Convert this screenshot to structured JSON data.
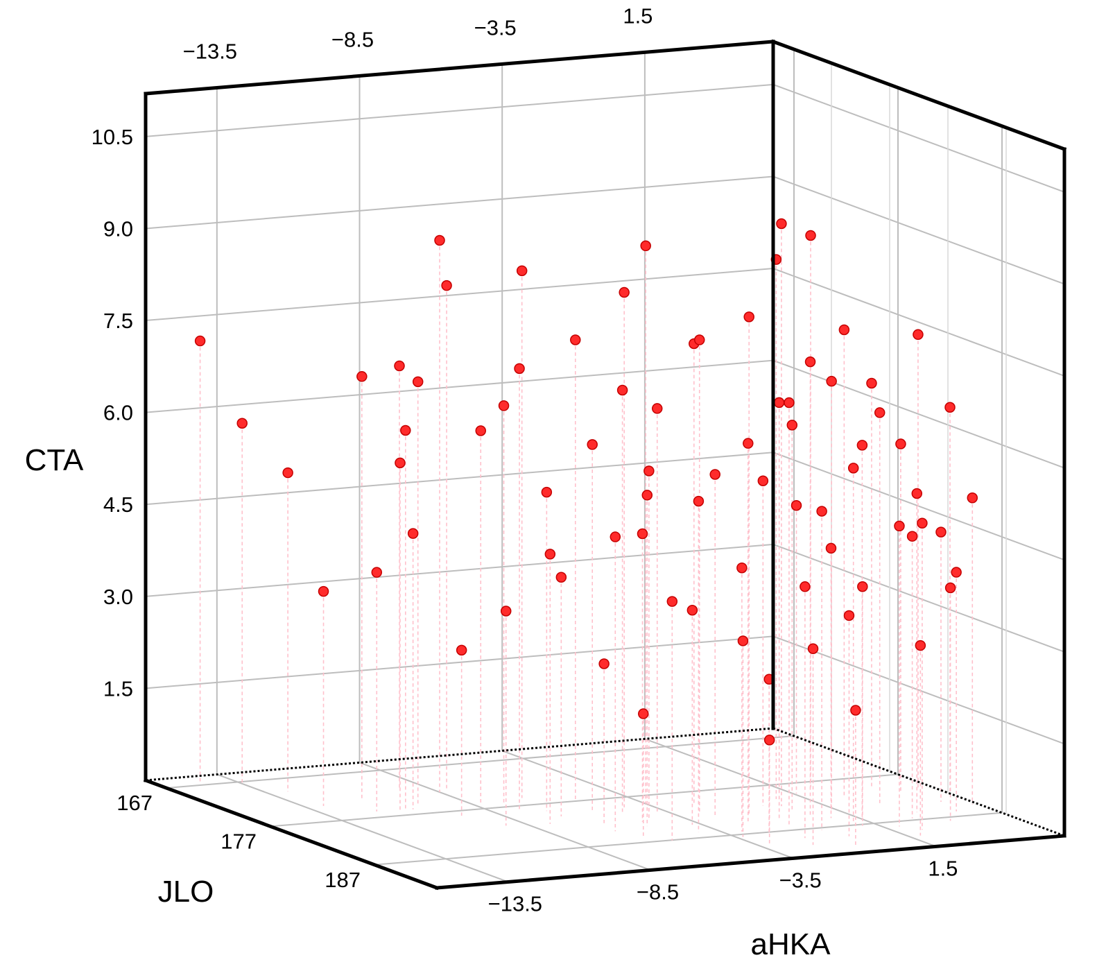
{
  "chart_data": {
    "type": "scatter",
    "projection": "3d",
    "x_axis": {
      "label": "aHKA",
      "ticks": [
        "−13.5",
        "−8.5",
        "−3.5",
        "1.5"
      ],
      "values": [
        -13.5,
        -8.5,
        -3.5,
        1.5
      ],
      "range": [
        -16,
        6
      ]
    },
    "y_axis": {
      "label": "JLO",
      "ticks": [
        "167",
        "177",
        "187"
      ],
      "values": [
        167,
        177,
        187
      ],
      "range": [
        165,
        193
      ]
    },
    "z_axis": {
      "label": "CTA",
      "ticks": [
        "1.5",
        "3.0",
        "4.5",
        "6.0",
        "7.5",
        "9.0",
        "10.5"
      ],
      "values": [
        1.5,
        3.0,
        4.5,
        6.0,
        7.5,
        9.0,
        10.5
      ],
      "range": [
        0,
        11.2
      ]
    },
    "grid": true,
    "marker_color": "#ff2b2b",
    "stem_color": "#ffc0cb",
    "series": [
      {
        "points": [
          [
            -14.6,
            166.4,
            7.2
          ],
          [
            -13.6,
            167.7,
            5.9
          ],
          [
            -12.8,
            169.9,
            5.2
          ],
          [
            -12.9,
            173.6,
            3.5
          ],
          [
            -11.2,
            176.3,
            5.7
          ],
          [
            -10.9,
            176.0,
            6.2
          ],
          [
            -11.3,
            172.9,
            6.9
          ],
          [
            -11.8,
            175.7,
            3.9
          ],
          [
            -10.1,
            175.0,
            6.9
          ],
          [
            -9.4,
            171.3,
            6.9
          ],
          [
            -10.6,
            175.9,
            4.5
          ],
          [
            -9.7,
            178.1,
            2.7
          ],
          [
            -8.5,
            172.7,
            9.0
          ],
          [
            -8.3,
            176.1,
            6.1
          ],
          [
            -7.6,
            176.4,
            6.5
          ],
          [
            -6.9,
            180.0,
            3.9
          ],
          [
            -8.0,
            172.0,
            8.2
          ],
          [
            -7.6,
            177.9,
            7.2
          ],
          [
            -6.9,
            178.6,
            5.2
          ],
          [
            -6.2,
            182.2,
            2.6
          ],
          [
            -6.6,
            175.4,
            8.6
          ],
          [
            -5.2,
            176.7,
            7.5
          ],
          [
            -5.7,
            179.7,
            6.0
          ],
          [
            -5.0,
            182.6,
            4.7
          ],
          [
            -4.4,
            179.2,
            8.4
          ],
          [
            -4.7,
            182.4,
            5.7
          ],
          [
            -3.8,
            184.1,
            3.5
          ],
          [
            -3.9,
            181.0,
            6.6
          ],
          [
            -5.2,
            183.6,
            5.4
          ],
          [
            -3.5,
            178.8,
            9.1
          ],
          [
            -2.6,
            181.5,
            7.7
          ],
          [
            -2.1,
            184.8,
            6.2
          ],
          [
            -2.9,
            186.4,
            4.3
          ],
          [
            -2.2,
            187.1,
            2.5
          ],
          [
            -1.3,
            182.7,
            8.1
          ],
          [
            -0.9,
            184.5,
            6.8
          ],
          [
            -0.5,
            187.5,
            5.2
          ],
          [
            -0.2,
            189.3,
            3.6
          ],
          [
            0.2,
            181.7,
            9.5
          ],
          [
            0.3,
            184.2,
            7.4
          ],
          [
            0.9,
            186.7,
            5.8
          ],
          [
            -1.6,
            188.9,
            4.1
          ],
          [
            -0.7,
            191.3,
            2.2
          ],
          [
            0.6,
            180.1,
            8.8
          ],
          [
            1.3,
            183.5,
            7.0
          ],
          [
            1.5,
            185.9,
            6.1
          ],
          [
            2.0,
            188.1,
            4.9
          ],
          [
            1.9,
            190.4,
            3.1
          ],
          [
            2.5,
            178.2,
            9.0
          ],
          [
            2.8,
            180.6,
            7.6
          ],
          [
            3.1,
            183.2,
            6.4
          ],
          [
            3.6,
            185.4,
            5.2
          ],
          [
            3.9,
            187.8,
            3.8
          ],
          [
            4.2,
            179.4,
            6.6
          ],
          [
            4.6,
            181.1,
            5.7
          ],
          [
            5.1,
            183.6,
            4.4
          ],
          [
            5.5,
            180.3,
            7.4
          ],
          [
            6.0,
            182.0,
            6.3
          ],
          [
            5.8,
            184.7,
            5.0
          ],
          [
            -6.5,
            184.1,
            4.8
          ],
          [
            -4.2,
            185.8,
            5.4
          ],
          [
            -1.1,
            186.0,
            6.9
          ],
          [
            1.0,
            187.3,
            3.9
          ],
          [
            -2.6,
            183.0,
            5.6
          ],
          [
            -3.3,
            187.6,
            3.2
          ],
          [
            -5.6,
            187.1,
            3.9
          ],
          [
            0.1,
            183.0,
            6.3
          ],
          [
            3.0,
            186.6,
            4.6
          ],
          [
            -7.8,
            181.4,
            4.4
          ],
          [
            -9.2,
            181.0,
            3.5
          ],
          [
            4.8,
            185.9,
            3.9
          ],
          [
            2.4,
            189.2,
            5.0
          ],
          [
            -1.9,
            190.5,
            3.2
          ],
          [
            -0.3,
            181.3,
            5.3
          ],
          [
            1.6,
            179.3,
            4.7
          ],
          [
            -4.9,
            180.4,
            6.9
          ],
          [
            -2.1,
            179.6,
            7.5
          ],
          [
            0.7,
            185.1,
            4.4
          ],
          [
            -6.1,
            185.7,
            2.0
          ],
          [
            -3.1,
            189.6,
            1.7
          ]
        ]
      }
    ]
  }
}
